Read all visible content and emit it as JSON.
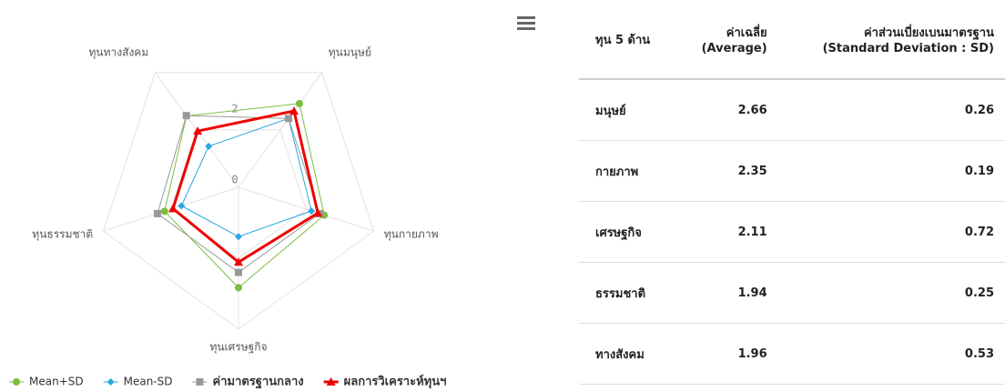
{
  "chart_data": {
    "type": "radar",
    "categories": [
      "ทุนมนุษย์",
      "ทุนกายภาพ",
      "ทุนเศรษฐกิจ",
      "ทุนธรรมชาติ",
      "ทุนทางสังคม"
    ],
    "ylim": [
      0,
      4
    ],
    "yticks": [
      0,
      2
    ],
    "grid": true,
    "legend": "bottom",
    "series": [
      {
        "name": "Mean+SD",
        "color": "#7cbf3f",
        "marker": "circle",
        "line_width": 1,
        "values": [
          2.92,
          2.54,
          2.83,
          2.19,
          2.49
        ]
      },
      {
        "name": "Mean-SD",
        "color": "#2aa6e0",
        "marker": "diamond",
        "line_width": 1,
        "values": [
          2.4,
          2.16,
          1.39,
          1.69,
          1.43
        ]
      },
      {
        "name": "ค่ามาตรฐานกลาง",
        "color": "#999999",
        "marker": "square",
        "line_width": 1,
        "values": [
          2.4,
          2.4,
          2.4,
          2.4,
          2.5
        ]
      },
      {
        "name": "ผลการวิเคราะห์ทุนฯ",
        "color": "#ee0000",
        "marker": "triangle",
        "line_width": 3,
        "values": [
          2.66,
          2.35,
          2.11,
          1.94,
          1.96
        ]
      }
    ]
  },
  "table": {
    "header": [
      [
        "ทุน 5 ด้าน"
      ],
      [
        "ค่าเฉลี่ย",
        "(Average)"
      ],
      [
        "ค่าส่วนเบี่ยงเบนมาตรฐาน",
        "(Standard Deviation : SD)"
      ]
    ],
    "rows": [
      [
        "มนุษย์",
        "2.66",
        "0.26"
      ],
      [
        "กายภาพ",
        "2.35",
        "0.19"
      ],
      [
        "เศรษฐกิจ",
        "2.11",
        "0.72"
      ],
      [
        "ธรรมชาติ",
        "1.94",
        "0.25"
      ],
      [
        "ทางสังคม",
        "1.96",
        "0.53"
      ]
    ]
  }
}
